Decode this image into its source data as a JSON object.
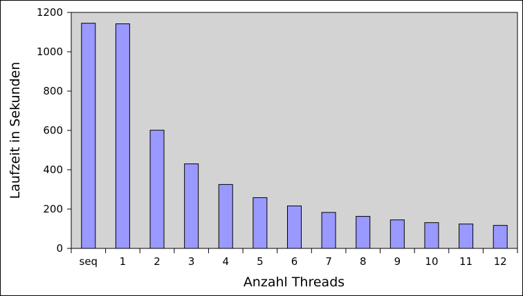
{
  "chart_data": {
    "type": "bar",
    "title": "",
    "xlabel": "Anzahl Threads",
    "ylabel": "Laufzeit in Sekunden",
    "categories": [
      "seq",
      "1",
      "2",
      "3",
      "4",
      "5",
      "6",
      "7",
      "8",
      "9",
      "10",
      "11",
      "12"
    ],
    "values": [
      1145,
      1142,
      601,
      430,
      325,
      258,
      216,
      183,
      163,
      145,
      131,
      124,
      117
    ],
    "ylim": [
      0,
      1200
    ],
    "yticks": [
      "0",
      "200",
      "400",
      "600",
      "800",
      "1000",
      "1200"
    ],
    "grid": false,
    "legend": "none",
    "colors": {
      "bar_fill": "#9999ff",
      "bar_stroke": "#000000",
      "plot_background": "#d3d3d3",
      "page_background": "#ffffff"
    }
  }
}
